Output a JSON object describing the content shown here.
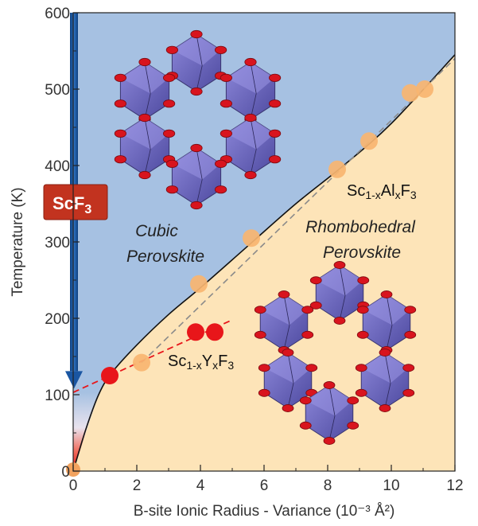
{
  "chart_data": {
    "type": "scatter",
    "xlabel": "B-site Ionic Radius - Variance (10⁻³ Å²)",
    "ylabel": "Temperature (K)",
    "xlim": [
      0,
      12
    ],
    "ylim": [
      0,
      600
    ],
    "x_ticks": [
      "0",
      "2",
      "4",
      "6",
      "8",
      "10",
      "12"
    ],
    "y_ticks": [
      "0",
      "100",
      "200",
      "300",
      "400",
      "500",
      "600"
    ],
    "regions": [
      {
        "name": "Cubic Perovskite",
        "line1": "Cubic",
        "line2": "Perovskite",
        "color": "#a6c1e2"
      },
      {
        "name": "Rhombohedral Perovskite",
        "line1": "Rhombohedral",
        "line2": "Perovskite",
        "color": "#fde4b8"
      }
    ],
    "phase_boundary": [
      [
        0,
        0
      ],
      [
        0.4,
        55
      ],
      [
        0.8,
        100
      ],
      [
        1.2,
        128
      ],
      [
        2,
        165
      ],
      [
        3,
        205
      ],
      [
        4,
        240
      ],
      [
        5.5,
        295
      ],
      [
        7,
        350
      ],
      [
        8.5,
        400
      ],
      [
        10,
        455
      ],
      [
        12,
        545
      ]
    ],
    "series": [
      {
        "label_base": "Sc",
        "label_sub": "1-x",
        "label_elem": "Y",
        "label_sub2": "x",
        "label_rest": "F",
        "label_sub3": "3",
        "color": "#e8161a",
        "points": [
          [
            0,
            2
          ],
          [
            1.15,
            125
          ],
          [
            3.85,
            182
          ],
          [
            4.45,
            182
          ]
        ],
        "fit": [
          [
            0,
            103
          ],
          [
            4.95,
            197
          ]
        ]
      },
      {
        "label_base": "Sc",
        "label_sub": "1-x",
        "label_elem": "Al",
        "label_sub2": "x",
        "label_rest": "F",
        "label_sub3": "3",
        "color": "#f8b570",
        "points": [
          [
            2.15,
            142
          ],
          [
            3.95,
            245
          ],
          [
            5.6,
            305
          ],
          [
            8.3,
            395
          ],
          [
            9.3,
            432
          ],
          [
            10.6,
            495
          ],
          [
            11.05,
            500
          ]
        ],
        "fit": [
          [
            2.15,
            142
          ],
          [
            12,
            540
          ]
        ]
      }
    ],
    "arrow_label": {
      "base": "ScF",
      "sub": "3"
    },
    "arrow_range": [
      600,
      108
    ]
  }
}
